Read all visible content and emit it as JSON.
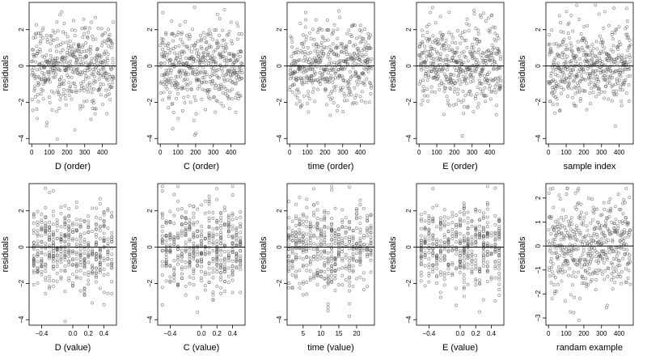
{
  "figure": {
    "type": "scatter",
    "ylabel": "residuals",
    "y_ticks": [
      -4,
      -2,
      0,
      2
    ],
    "y_range": [
      -4.3,
      3.5
    ],
    "reference_line_y": 0,
    "point_color": "#555555",
    "grid": false,
    "legend": "none"
  },
  "chart_data": [
    {
      "type": "scatter",
      "title": "",
      "xlabel": "D (order)",
      "ylabel": "residuals",
      "x_ticks": [
        0,
        100,
        200,
        300,
        400
      ],
      "xlim": [
        -15,
        480
      ],
      "ylim": [
        -4.3,
        3.5
      ],
      "reference_line_y": 0,
      "x_kind": "order",
      "n_points": 470
    },
    {
      "type": "scatter",
      "title": "",
      "xlabel": "C (order)",
      "ylabel": "residuals",
      "x_ticks": [
        0,
        100,
        200,
        300,
        400
      ],
      "xlim": [
        -15,
        480
      ],
      "ylim": [
        -4.3,
        3.5
      ],
      "reference_line_y": 0,
      "x_kind": "order",
      "n_points": 470
    },
    {
      "type": "scatter",
      "title": "",
      "xlabel": "time (order)",
      "ylabel": "residuals",
      "x_ticks": [
        0,
        100,
        200,
        300,
        400
      ],
      "xlim": [
        -15,
        480
      ],
      "ylim": [
        -4.3,
        3.5
      ],
      "reference_line_y": 0,
      "x_kind": "order",
      "n_points": 470
    },
    {
      "type": "scatter",
      "title": "",
      "xlabel": "E (order)",
      "ylabel": "residuals",
      "x_ticks": [
        0,
        100,
        200,
        300,
        400
      ],
      "xlim": [
        -15,
        480
      ],
      "ylim": [
        -4.3,
        3.5
      ],
      "reference_line_y": 0,
      "x_kind": "order",
      "n_points": 470
    },
    {
      "type": "scatter",
      "title": "",
      "xlabel": "sample index",
      "ylabel": "residuals",
      "x_ticks": [
        0,
        100,
        200,
        300,
        400
      ],
      "xlim": [
        -15,
        480
      ],
      "ylim": [
        -4.3,
        3.5
      ],
      "reference_line_y": 0,
      "x_kind": "order",
      "n_points": 470
    },
    {
      "type": "scatter",
      "title": "",
      "xlabel": "D (value)",
      "ylabel": "residuals",
      "x_ticks": [
        -0.4,
        0,
        0.2,
        0.4
      ],
      "x_tick_labels": [
        "-0.4",
        "0.0",
        "0.2",
        "0.4"
      ],
      "xlim": [
        -0.56,
        0.56
      ],
      "ylim": [
        -4.3,
        3.5
      ],
      "reference_line_y": 0,
      "x_kind": "value",
      "n_points": 470
    },
    {
      "type": "scatter",
      "title": "",
      "xlabel": "C (value)",
      "ylabel": "residuals",
      "x_ticks": [
        -0.4,
        0,
        0.2,
        0.4
      ],
      "x_tick_labels": [
        "-0.4",
        "0.0",
        "0.2",
        "0.4"
      ],
      "xlim": [
        -0.56,
        0.56
      ],
      "ylim": [
        -4.3,
        3.5
      ],
      "reference_line_y": 0,
      "x_kind": "value",
      "n_points": 470
    },
    {
      "type": "scatter",
      "title": "",
      "xlabel": "time (value)",
      "ylabel": "residuals",
      "x_ticks": [
        5,
        10,
        15,
        20
      ],
      "x_tick_labels": [
        "5",
        "10",
        "15",
        "20"
      ],
      "xlim": [
        0.5,
        25
      ],
      "ylim": [
        -4.3,
        3.5
      ],
      "reference_line_y": 0,
      "x_kind": "value",
      "n_points": 470
    },
    {
      "type": "scatter",
      "title": "",
      "xlabel": "E (value)",
      "ylabel": "residuals",
      "x_ticks": [
        -0.4,
        0,
        0.2,
        0.4
      ],
      "x_tick_labels": [
        "-0.4",
        "0.0",
        "0.2",
        "0.4"
      ],
      "xlim": [
        -0.56,
        0.56
      ],
      "ylim": [
        -4.3,
        3.5
      ],
      "reference_line_y": 0,
      "x_kind": "value",
      "n_points": 470
    },
    {
      "type": "scatter",
      "title": "",
      "xlabel": "randam example",
      "ylabel": "residuals",
      "x_ticks": [
        0,
        100,
        200,
        300,
        400
      ],
      "xlim": [
        -15,
        480
      ],
      "ylim": [
        -3.3,
        2.6
      ],
      "y_ticks": [
        -3,
        -2,
        -1,
        0,
        1,
        2
      ],
      "reference_line_y": 0,
      "x_kind": "order",
      "n_points": 470
    }
  ]
}
